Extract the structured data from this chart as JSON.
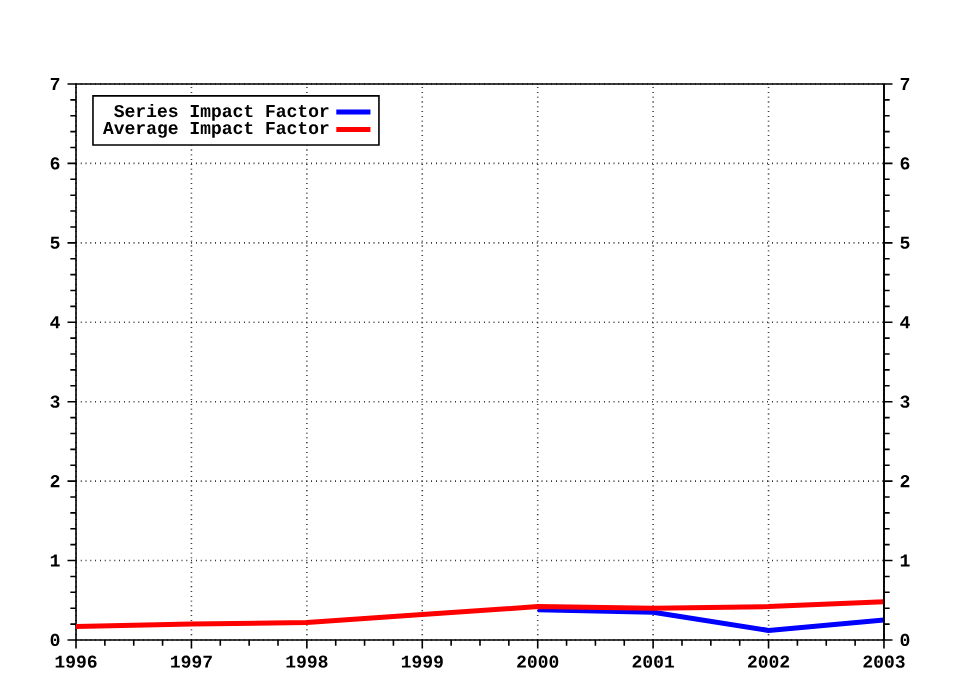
{
  "chart_data": {
    "type": "line",
    "x": [
      1996,
      1997,
      1998,
      1999,
      2000,
      2001,
      2002,
      2003
    ],
    "series": [
      {
        "name": "Series Impact Factor",
        "color": "#0000ff",
        "x": [
          2000,
          2001,
          2002,
          2003
        ],
        "values": [
          0.38,
          0.35,
          0.12,
          0.25
        ]
      },
      {
        "name": "Average Impact Factor",
        "color": "#ff0000",
        "values": [
          0.17,
          0.2,
          0.22,
          0.32,
          0.42,
          0.4,
          0.42,
          0.48
        ]
      }
    ],
    "xlim": [
      1996,
      2003
    ],
    "xticks": [
      1996,
      1997,
      1998,
      1999,
      2000,
      2001,
      2002,
      2003
    ],
    "ylim": [
      0,
      7
    ],
    "yticks": [
      0,
      1,
      2,
      3,
      4,
      5,
      6,
      7
    ],
    "y2lim": [
      0,
      7
    ],
    "y2ticks": [
      0,
      1,
      2,
      3,
      4,
      5,
      6,
      7
    ],
    "grid": true,
    "legend": "top left",
    "marker": "none",
    "line_style": "solid"
  }
}
